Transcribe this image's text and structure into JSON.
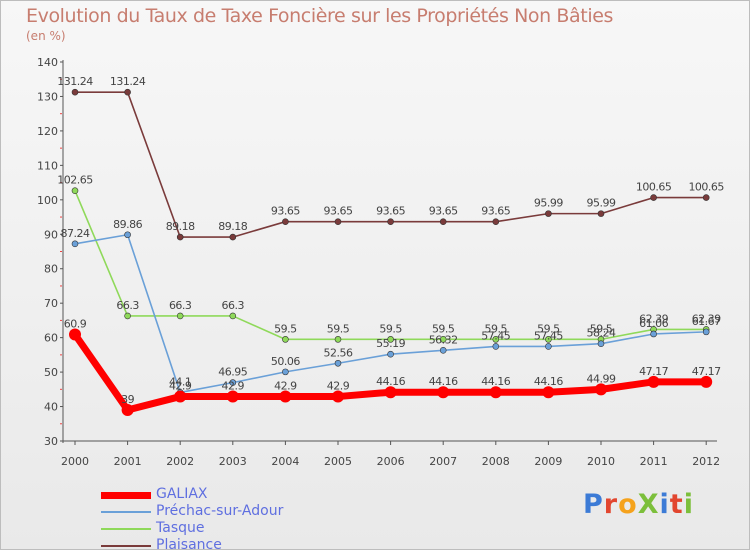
{
  "chart_data": {
    "type": "line",
    "title": "Evolution du Taux de Taxe Foncière sur les Propriétés Non Bâties",
    "ylabel": "(en %)",
    "xlabel": "",
    "ylim": [
      30,
      140
    ],
    "yticks": [
      30,
      40,
      50,
      60,
      70,
      80,
      90,
      100,
      110,
      120,
      130,
      140
    ],
    "x": [
      "2000",
      "2001",
      "2002",
      "2003",
      "2004",
      "2005",
      "2006",
      "2007",
      "2008",
      "2009",
      "2010",
      "2011",
      "2012"
    ],
    "grid": false,
    "legend_position": "bottom-left",
    "series": [
      {
        "name": "GALIAX",
        "color": "#ff0000",
        "values": [
          60.9,
          39,
          42.9,
          42.9,
          42.9,
          42.9,
          44.16,
          44.16,
          44.16,
          44.16,
          44.99,
          47.17,
          47.17
        ],
        "labels": [
          "60.9",
          "39",
          "42.9",
          "42.9",
          "42.9",
          "42.9",
          "44.16",
          "44.16",
          "44.16",
          "44.16",
          "44.99",
          "47.17",
          "47.17"
        ]
      },
      {
        "name": "Préchac-sur-Adour",
        "color": "#6aa0d8",
        "values": [
          87.24,
          89.86,
          44.1,
          46.95,
          50.06,
          52.56,
          55.19,
          56.32,
          57.45,
          57.45,
          58.24,
          61.06,
          61.67
        ],
        "labels": [
          "87.24",
          "89.86",
          "44.1",
          "46.95",
          "50.06",
          "52.56",
          "55.19",
          "56.32",
          "57.45",
          "57.45",
          "58.24",
          "61.06",
          "61.67"
        ]
      },
      {
        "name": "Tasque",
        "color": "#8fd95a",
        "values": [
          102.65,
          66.3,
          66.3,
          66.3,
          59.5,
          59.5,
          59.5,
          59.5,
          59.5,
          59.5,
          59.5,
          62.39,
          62.39
        ],
        "labels": [
          "102.65",
          "66.3",
          "66.3",
          "66.3",
          "59.5",
          "59.5",
          "59.5",
          "59.5",
          "59.5",
          "59.5",
          "59.5",
          "62.39",
          "62.39"
        ]
      },
      {
        "name": "Plaisance",
        "color": "#7a3b3b",
        "values": [
          131.24,
          131.24,
          89.18,
          89.18,
          93.65,
          93.65,
          93.65,
          93.65,
          93.65,
          95.99,
          95.99,
          100.65,
          100.65
        ],
        "labels": [
          "131.24",
          "131.24",
          "89.18",
          "89.18",
          "93.65",
          "93.65",
          "93.65",
          "93.65",
          "93.65",
          "95.99",
          "95.99",
          "100.65",
          "100.65"
        ]
      }
    ]
  },
  "logo": {
    "text": "ProXiti",
    "letters": [
      "P",
      "r",
      "o",
      "X",
      "i",
      "t",
      "i"
    ],
    "colors": [
      "#3c7bd6",
      "#e2462f",
      "#f5a21c",
      "#7cbf3b"
    ]
  }
}
